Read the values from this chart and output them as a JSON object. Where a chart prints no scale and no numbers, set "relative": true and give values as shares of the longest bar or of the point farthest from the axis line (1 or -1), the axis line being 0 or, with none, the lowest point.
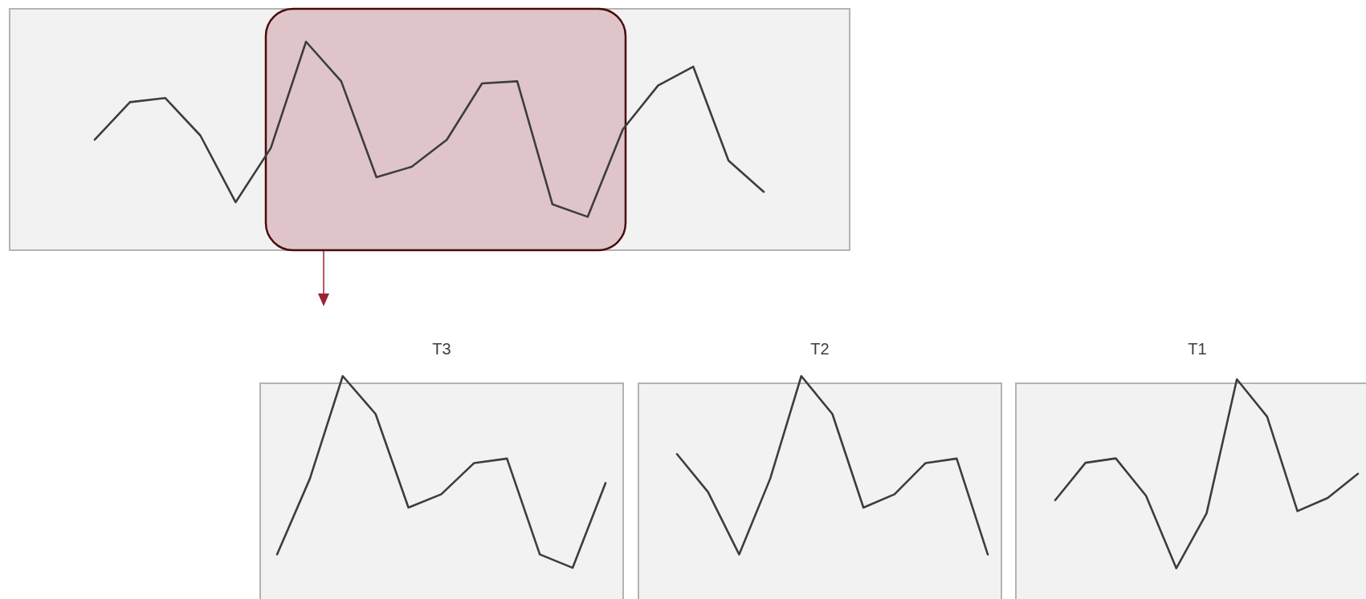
{
  "chart_data": [
    {
      "type": "line",
      "relative": true,
      "categories": [
        null,
        null,
        null,
        null,
        null,
        null,
        null,
        null,
        null,
        null,
        null,
        null,
        null,
        null,
        null,
        null,
        null,
        null,
        null,
        null
      ],
      "series": [
        {
          "color": "#3d3d3d",
          "values": [
            0.53,
            0.71,
            0.73,
            0.55,
            0.23,
            0.49,
            1,
            0.81,
            0.35,
            0.4,
            0.53,
            0.8,
            0.81,
            0.22,
            0.16,
            0.58,
            0.79,
            0.88,
            0.43,
            0.28
          ]
        }
      ]
    },
    {
      "type": "line",
      "relative": true,
      "title": "T3",
      "categories": [
        null,
        null,
        null,
        null,
        null,
        null,
        null,
        null,
        null,
        null,
        null
      ],
      "series": [
        {
          "color": "#3d3d3d",
          "values": [
            0.2,
            0.54,
            1,
            0.83,
            0.41,
            0.47,
            0.61,
            0.63,
            0.2,
            0.14,
            0.52
          ]
        }
      ]
    },
    {
      "type": "line",
      "relative": true,
      "title": "T2",
      "categories": [
        null,
        null,
        null,
        null,
        null,
        null,
        null,
        null,
        null,
        null,
        null
      ],
      "series": [
        {
          "color": "#3d3d3d",
          "values": [
            0.65,
            0.48,
            0.2,
            0.54,
            1,
            0.83,
            0.41,
            0.47,
            0.61,
            0.63,
            0.2
          ]
        }
      ]
    },
    {
      "type": "line",
      "relative": true,
      "title": "T1",
      "categories": [
        null,
        null,
        null,
        null,
        null,
        null,
        null,
        null,
        null,
        null,
        null
      ],
      "series": [
        {
          "color": "#3d3d3d",
          "values": [
            0.45,
            0.62,
            0.64,
            0.47,
            0.14,
            0.39,
            1,
            0.83,
            0.4,
            0.46,
            0.57
          ]
        }
      ]
    }
  ]
}
